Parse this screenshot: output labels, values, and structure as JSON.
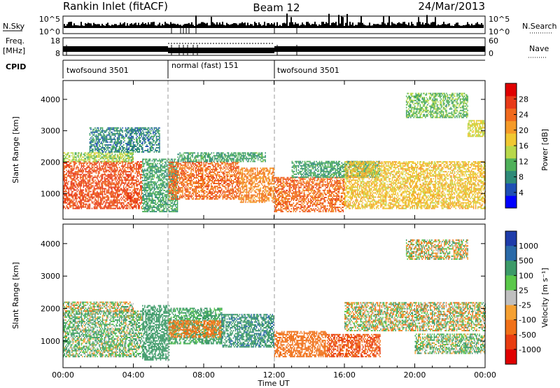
{
  "header": {
    "station": "Rankin Inlet (fitACF)",
    "beam": "Beam 12",
    "date": "24/Mar/2013"
  },
  "strips": {
    "nsky_label": "N.Sky",
    "nsky_tick_top": "10^5",
    "nsky_tick_bottom": "10^0",
    "nsearch_label": "N.Search",
    "freq_label_1": "Freq.",
    "freq_label_2": "[MHz]",
    "freq_ticks": [
      "18",
      "8"
    ],
    "nave_label": "Nave",
    "nave_ticks": [
      "60",
      "0"
    ],
    "cpid_label": "CPID",
    "modes": [
      {
        "name": "twofsound 3501",
        "start": 0,
        "end": 6
      },
      {
        "name": "normal (fast) 151",
        "start": 6,
        "end": 12
      },
      {
        "name": "twofsound 3501",
        "start": 12,
        "end": 24
      }
    ]
  },
  "colorbars": {
    "power_label": "Power [dB]",
    "power_ticks": [
      "28",
      "24",
      "20",
      "16",
      "12",
      "8",
      "4"
    ],
    "power_colors": [
      "#0000ff",
      "#1e4fb4",
      "#2e8a78",
      "#4fb05a",
      "#b8d84a",
      "#f0c832",
      "#f59a28",
      "#f06a1e",
      "#e83a18",
      "#e00000"
    ],
    "velocity_label": "Velocity [m s⁻¹]",
    "velocity_ticks": [
      "1000",
      "500",
      "100",
      "25",
      "-25",
      "-100",
      "-500",
      "-1000"
    ],
    "velocity_colors": [
      "#1e3caa",
      "#2a6aa8",
      "#3c9a68",
      "#5ac84a",
      "#bfbfbf",
      "#f5a032",
      "#f07018",
      "#e83c10",
      "#e00000"
    ]
  },
  "axes": {
    "xlabel": "Time UT",
    "xticks": [
      "00:00",
      "04:00",
      "08:00",
      "12:00",
      "16:00",
      "20:00",
      "00:00"
    ],
    "ylabel": "Slant Range [km]",
    "yticks": [
      "1000",
      "2000",
      "3000",
      "4000"
    ]
  },
  "chart_data": [
    {
      "type": "heatmap",
      "title": "",
      "panel": "power",
      "xlabel": "",
      "ylabel": "Slant Range [km]",
      "xlim": [
        0,
        24
      ],
      "ylim": [
        180,
        4600
      ],
      "zlabel": "Power [dB]",
      "zlim": [
        0,
        32
      ],
      "bands": [
        {
          "t0": 0,
          "t1": 4.5,
          "r0": 500,
          "r1": 2000,
          "value": 26
        },
        {
          "t0": 0,
          "t1": 4,
          "r0": 2000,
          "r1": 2300,
          "value": 14
        },
        {
          "t0": 1.5,
          "t1": 5.5,
          "r0": 2300,
          "r1": 3100,
          "value": 8
        },
        {
          "t0": 4.5,
          "t1": 6.5,
          "r0": 400,
          "r1": 2100,
          "value": 10
        },
        {
          "t0": 6,
          "t1": 10,
          "r0": 800,
          "r1": 2000,
          "value": 24
        },
        {
          "t0": 6.5,
          "t1": 11.5,
          "r0": 2000,
          "r1": 2300,
          "value": 10
        },
        {
          "t0": 10,
          "t1": 12,
          "r0": 700,
          "r1": 1800,
          "value": 22
        },
        {
          "t0": 12,
          "t1": 16,
          "r0": 400,
          "r1": 1500,
          "value": 24
        },
        {
          "t0": 13,
          "t1": 18,
          "r0": 1500,
          "r1": 2000,
          "value": 10
        },
        {
          "t0": 16,
          "t1": 24,
          "r0": 500,
          "r1": 2000,
          "value": 18
        },
        {
          "t0": 19.5,
          "t1": 23,
          "r0": 3400,
          "r1": 4200,
          "value": 12
        },
        {
          "t0": 23,
          "t1": 24,
          "r0": 2800,
          "r1": 3300,
          "value": 16
        }
      ]
    },
    {
      "type": "heatmap",
      "title": "",
      "panel": "velocity",
      "xlabel": "Time UT",
      "ylabel": "Slant Range [km]",
      "xlim": [
        0,
        24
      ],
      "ylim": [
        180,
        4600
      ],
      "zlabel": "Velocity [m s⁻¹]",
      "zlim": [
        -1000,
        1000
      ],
      "bands": [
        {
          "t0": 0,
          "t1": 4.5,
          "r0": 500,
          "r1": 1900,
          "value": 100
        },
        {
          "t0": 0,
          "t1": 4,
          "r0": 1900,
          "r1": 2200,
          "value": 0
        },
        {
          "t0": 4.5,
          "t1": 6,
          "r0": 400,
          "r1": 2100,
          "value": 300
        },
        {
          "t0": 6,
          "t1": 9,
          "r0": 900,
          "r1": 2000,
          "value": 200
        },
        {
          "t0": 6,
          "t1": 9,
          "r0": 1100,
          "r1": 1600,
          "value": -200
        },
        {
          "t0": 9,
          "t1": 12,
          "r0": 800,
          "r1": 1800,
          "value": 400
        },
        {
          "t0": 12,
          "t1": 15,
          "r0": 500,
          "r1": 1300,
          "value": -300
        },
        {
          "t0": 15,
          "t1": 18,
          "r0": 500,
          "r1": 1200,
          "value": -500
        },
        {
          "t0": 16,
          "t1": 24,
          "r0": 1300,
          "r1": 2200,
          "value": 0
        },
        {
          "t0": 19.5,
          "t1": 23,
          "r0": 3500,
          "r1": 4100,
          "value": 0
        },
        {
          "t0": 20,
          "t1": 24,
          "r0": 600,
          "r1": 1200,
          "value": 80
        }
      ]
    }
  ]
}
